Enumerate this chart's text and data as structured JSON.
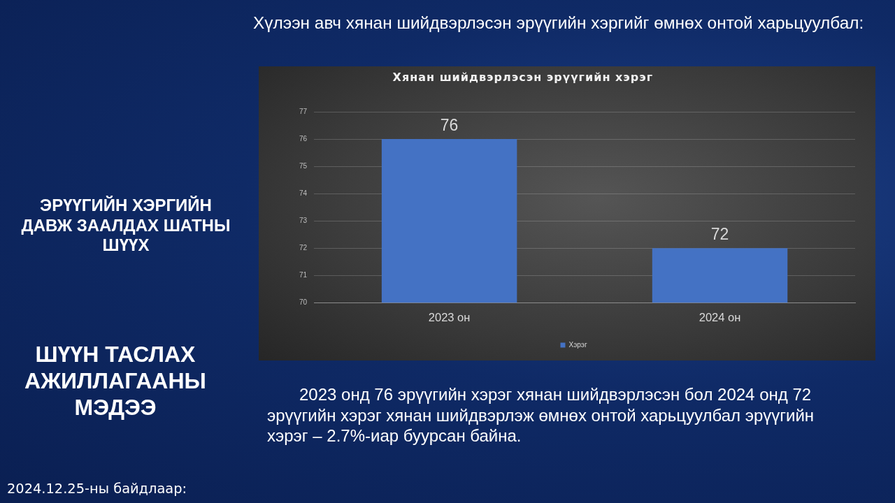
{
  "chart_data": {
    "type": "bar",
    "title": "Хянан шийдвэрлэсэн эрүүгийн хэрэг",
    "categories": [
      "2023 он",
      "2024 он"
    ],
    "series": [
      {
        "name": "Хэрэг",
        "color": "#4472c4",
        "values": [
          76,
          72
        ]
      }
    ],
    "ylim": [
      70,
      77
    ],
    "yticks": [
      70,
      71,
      72,
      73,
      74,
      75,
      76,
      77
    ],
    "grid": "y",
    "legend": "bottom",
    "data_labels": true,
    "annotations": [
      "Хүлээн авч хянан шийдвэрлэсэн эрүүгийн хэргийг өмнөх онтой харьцуулбал:",
      "ЭРҮҮГИЙН ХЭРГИЙН\nДАВЖ ЗААЛДАХ ШАТНЫ\nШҮҮХ",
      "ШҮҮН ТАСЛАХ\nАЖИЛЛАГААНЫ\nМЭДЭЭ",
      "2024.12.25-ны байдлаар:",
      "2023 онд 76 эрүүгийн хэрэг хянан шийдвэрлэсэн бол 2024 онд 72 эрүүгийн хэрэг хянан шийдвэрлэж өмнөх онтой харьцуулбал эрүүгийн хэрэг – 2.7%-иар буурсан байна."
    ]
  }
}
